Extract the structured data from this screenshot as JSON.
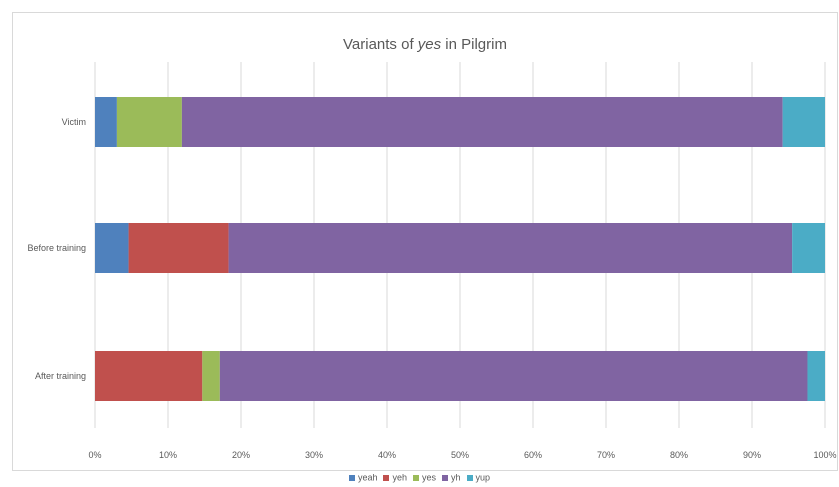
{
  "chart_data": {
    "type": "bar",
    "orientation": "horizontal",
    "stacked": "percent",
    "title_prefix": "Variants of ",
    "title_emphasis": "yes",
    "title_suffix": " in Pilgrim",
    "categories": [
      "Victim",
      "Before training",
      "After training"
    ],
    "series": [
      {
        "name": "yeah",
        "color": "#4f81bd",
        "values": [
          3.0,
          4.6,
          0.0
        ]
      },
      {
        "name": "yeh",
        "color": "#c0504d",
        "values": [
          0.0,
          13.7,
          14.7
        ]
      },
      {
        "name": "yes",
        "color": "#9bbb59",
        "values": [
          8.9,
          0.0,
          2.4
        ]
      },
      {
        "name": "yh",
        "color": "#8064a2",
        "values": [
          82.3,
          77.2,
          80.5
        ]
      },
      {
        "name": "yup",
        "color": "#4bacc6",
        "values": [
          5.8,
          4.5,
          2.4
        ]
      }
    ],
    "x_ticks": [
      "0%",
      "10%",
      "20%",
      "30%",
      "40%",
      "50%",
      "60%",
      "70%",
      "80%",
      "90%",
      "100%"
    ],
    "xlim": [
      0,
      100
    ],
    "grid": "vertical",
    "legend_position": "bottom"
  }
}
